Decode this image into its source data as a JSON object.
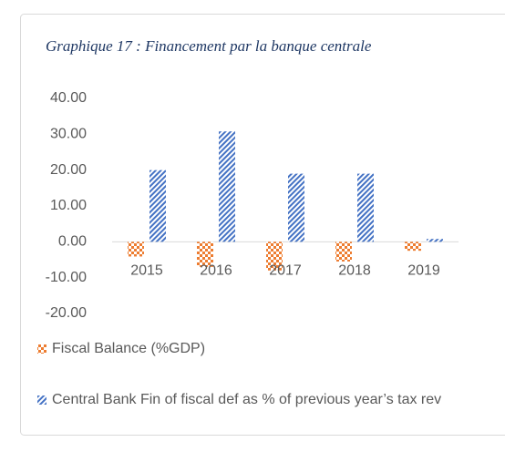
{
  "chart_data": {
    "type": "bar",
    "title": "Graphique 17 : Financement par la banque centrale",
    "categories": [
      "2015",
      "2016",
      "2017",
      "2018",
      "2019"
    ],
    "series": [
      {
        "name": "Fiscal Balance (%GDP)",
        "color": "#ed7d31",
        "values": [
          -4.1,
          -7,
          -8,
          -5.5,
          -2.5
        ]
      },
      {
        "name": "Central Bank Fin of fiscal def as % of previous year’s tax rev",
        "color": "#4472c4",
        "values": [
          20,
          30.8,
          19,
          19,
          0.8
        ]
      }
    ],
    "ylim": [
      -20,
      40
    ],
    "yticks": [
      {
        "value": -20,
        "label": "-20.00"
      },
      {
        "value": -10,
        "label": "-10.00"
      },
      {
        "value": 0,
        "label": "0.00"
      },
      {
        "value": 10,
        "label": "10.00"
      },
      {
        "value": 20,
        "label": "20.00"
      },
      {
        "value": 30,
        "label": "30.00"
      },
      {
        "value": 40,
        "label": "40.00"
      }
    ],
    "grid": false,
    "legend": "bottom"
  }
}
